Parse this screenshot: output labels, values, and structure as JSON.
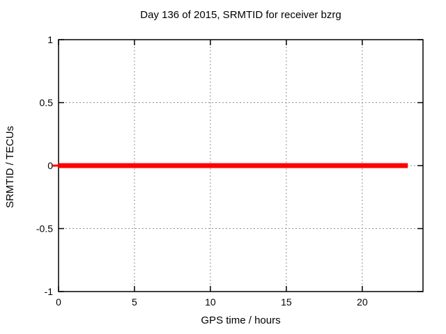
{
  "page": {
    "background": "#ffffff"
  },
  "chart_data": {
    "type": "line",
    "title": "Day 136 of 2015, SRMTID for receiver bzrg",
    "xlabel": "GPS time / hours",
    "ylabel": "SRMTID / TECUs",
    "xlim": [
      0,
      24
    ],
    "ylim": [
      -1,
      1
    ],
    "xticks": [
      0,
      5,
      10,
      15,
      20
    ],
    "xtick_labels": [
      "0",
      "5",
      "10",
      "15",
      "20"
    ],
    "yticks": [
      -1,
      -0.5,
      0,
      0.5,
      1
    ],
    "ytick_labels": [
      "-1",
      "-0.5",
      "0",
      "0.5",
      "1"
    ],
    "grid": true,
    "legend": "none",
    "colors": {
      "background": "#ffffff",
      "border": "#000000",
      "grid": "#8f8f8f",
      "text": "#000000"
    },
    "series": [
      {
        "name": "SRMTID",
        "color": "#ff0000",
        "line_width": 7,
        "x": [
          0,
          23
        ],
        "y": [
          0,
          0
        ]
      }
    ]
  }
}
